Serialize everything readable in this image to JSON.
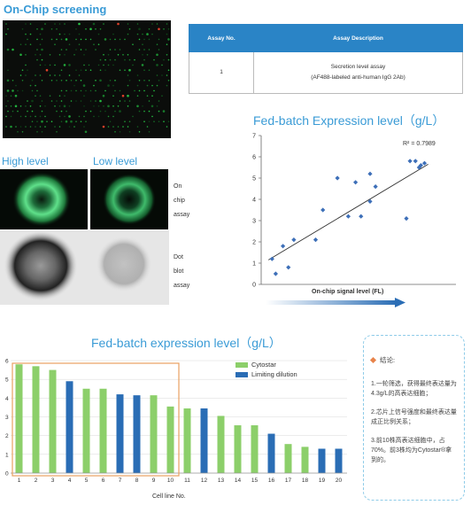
{
  "top": {
    "on_chip_title": "On-Chip screening",
    "high_label": "High level",
    "low_label": "Low level",
    "on_chip_assay_lines": [
      "On",
      "chip",
      "assay"
    ],
    "dot_blot_lines": [
      "Dot",
      "blot",
      "assay"
    ]
  },
  "table": {
    "headers": [
      "Assay No.",
      "Assay Description"
    ],
    "row": {
      "no": "1",
      "desc_line1": "Secretion level assay",
      "desc_line2": "(AF488-labeled anti-human IgG 2Ab)"
    }
  },
  "note": {
    "title": "结论:",
    "items": [
      "1.一轮筛选，获得最终表达量为4.3g/L的高表达细胞；",
      "2.芯片上信号强度和最终表达量成正比例关系；",
      "3.前10株高表达细胞中，占70%。前3株均为Cytostar®拿到的。"
    ]
  },
  "colors": {
    "title_blue": "#3a9bd6",
    "header_blue": "#2a84c6",
    "cytostar_green": "#8ccf6a",
    "limiting_blue": "#2a6db5",
    "box_orange": "#e8a060",
    "scatter_point": "#3d6fb8"
  },
  "chart_data": [
    {
      "type": "scatter",
      "title": "Fed-batch Expression level（g/L）",
      "xlabel": "On-chip signal level (FL)",
      "ylabel": "",
      "ylim": [
        0,
        7
      ],
      "yticks": [
        "0",
        "1",
        "2",
        "3",
        "4",
        "5",
        "6",
        "7"
      ],
      "annotation": "R² = 0.7989",
      "points": [
        [
          0.06,
          1.2
        ],
        [
          0.08,
          0.5
        ],
        [
          0.12,
          1.8
        ],
        [
          0.15,
          0.8
        ],
        [
          0.18,
          2.1
        ],
        [
          0.3,
          2.1
        ],
        [
          0.34,
          3.5
        ],
        [
          0.42,
          5.0
        ],
        [
          0.48,
          3.2
        ],
        [
          0.52,
          4.8
        ],
        [
          0.55,
          3.2
        ],
        [
          0.6,
          5.2
        ],
        [
          0.6,
          3.9
        ],
        [
          0.63,
          4.6
        ],
        [
          0.8,
          3.1
        ],
        [
          0.82,
          5.8
        ],
        [
          0.85,
          5.8
        ],
        [
          0.87,
          5.5
        ],
        [
          0.88,
          5.6
        ],
        [
          0.9,
          5.7
        ]
      ],
      "trendline": [
        [
          0.04,
          1.15
        ],
        [
          0.92,
          5.65
        ]
      ]
    },
    {
      "type": "bar",
      "title": "Fed-batch expression level（g/L）",
      "xlabel": "Cell line No.",
      "ylabel": "",
      "ylim": [
        0,
        6
      ],
      "yticks": [
        "0",
        "1",
        "2",
        "3",
        "4",
        "5",
        "6"
      ],
      "categories": [
        "1",
        "2",
        "3",
        "4",
        "5",
        "6",
        "7",
        "8",
        "9",
        "10",
        "11",
        "12",
        "13",
        "14",
        "15",
        "16",
        "17",
        "18",
        "19",
        "20"
      ],
      "values": [
        5.8,
        5.7,
        5.5,
        4.9,
        4.5,
        4.5,
        4.2,
        4.15,
        4.15,
        3.55,
        3.45,
        3.45,
        3.05,
        2.55,
        2.55,
        2.1,
        1.55,
        1.4,
        1.3,
        1.3
      ],
      "groups": [
        "Cytostar",
        "Cytostar",
        "Cytostar",
        "Limiting dilution",
        "Cytostar",
        "Cytostar",
        "Limiting dilution",
        "Limiting dilution",
        "Cytostar",
        "Cytostar",
        "Cytostar",
        "Limiting dilution",
        "Cytostar",
        "Cytostar",
        "Cytostar",
        "Limiting dilution",
        "Cytostar",
        "Cytostar",
        "Limiting dilution",
        "Limiting dilution"
      ],
      "legend": [
        "Cytostar",
        "Limiting dilution"
      ],
      "legend_position": "top-right"
    }
  ]
}
